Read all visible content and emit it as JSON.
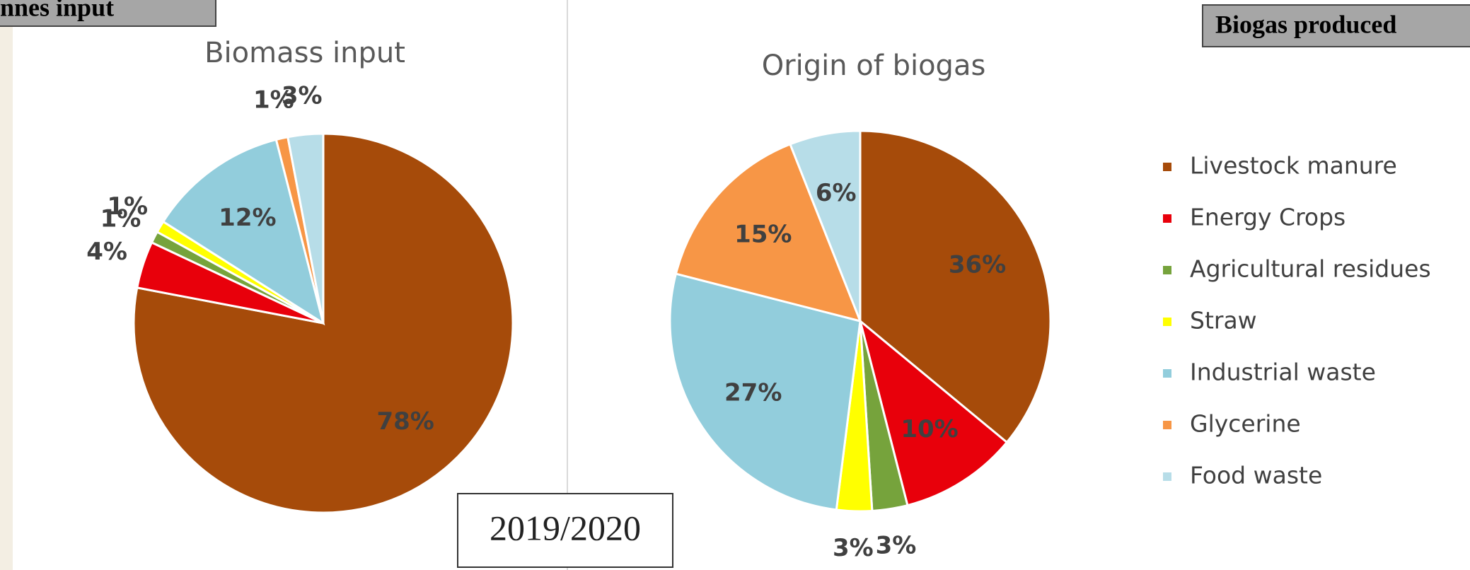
{
  "header_left": "nnes input",
  "header_right": "Biogas produced",
  "year": "2019/2020",
  "legend": {
    "labels": [
      "Livestock manure",
      "Energy Crops",
      "Agricultural residues",
      "Straw",
      "Industrial waste",
      "Glycerine",
      "Food waste"
    ],
    "colors": [
      "#a64b0a",
      "#e8000b",
      "#76a33c",
      "#ffff00",
      "#92cddc",
      "#f79646",
      "#b7dde8"
    ]
  },
  "chart_data": [
    {
      "type": "pie",
      "title": "Biomass input",
      "values": [
        78,
        4,
        1,
        1,
        12,
        1,
        3
      ],
      "value_labels": [
        "78%",
        "4%",
        "1%",
        "1%",
        "12%",
        "1%",
        "3%"
      ]
    },
    {
      "type": "pie",
      "title": "Origin of biogas",
      "values": [
        36,
        10,
        3,
        3,
        27,
        15,
        6
      ],
      "value_labels": [
        "36%",
        "10%",
        "3%",
        "3%",
        "27%",
        "15%",
        "6%"
      ]
    }
  ]
}
